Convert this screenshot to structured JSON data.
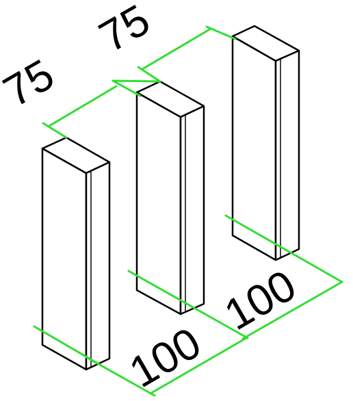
{
  "drawing": {
    "dimension_spacing_top_1": "75",
    "dimension_spacing_top_2": "75",
    "dimension_spacing_bottom_1": "100",
    "dimension_spacing_bottom_2": "100"
  },
  "colors": {
    "dimension_line": "#33dd33",
    "outline": "#000000",
    "face_fill": "#ffffff"
  }
}
